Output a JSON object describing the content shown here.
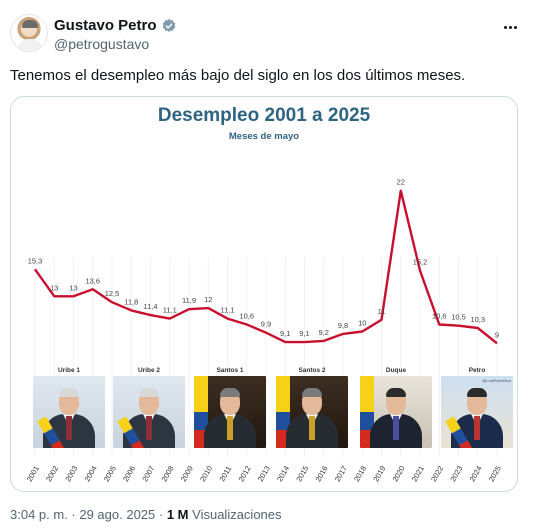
{
  "author": {
    "name": "Gustavo Petro",
    "handle": "@petrogustavo"
  },
  "tweet": {
    "text": "Tenemos el desempleo más bajo del siglo en los dos últimos meses."
  },
  "footer": {
    "timestamp": "3:04 p. m. · 29 ago. 2025",
    "separator": " · ",
    "views_count": "1 M",
    "views_label": "Visualizaciones"
  },
  "colors": {
    "line": "#c8102e",
    "title": "#2f6480",
    "verified": "#829aab"
  },
  "icons": {
    "verified": "verified-badge-icon",
    "more": "more-options-icon"
  },
  "chart_data": {
    "type": "line",
    "title": "Desempleo 2001 a 2025",
    "subtitle": "Meses de mayo",
    "x": [
      "2001",
      "2002",
      "2003",
      "2004",
      "2005",
      "2006",
      "2007",
      "2008",
      "2009",
      "2010",
      "2011",
      "2012",
      "2013",
      "2014",
      "2015",
      "2016",
      "2017",
      "2018",
      "2019",
      "2020",
      "2021",
      "2022",
      "2023",
      "2024",
      "2025"
    ],
    "values": [
      15.3,
      13,
      13,
      13.6,
      12.5,
      11.8,
      11.4,
      11.1,
      11.9,
      12,
      11.1,
      10.6,
      9.9,
      9.1,
      9.1,
      9.2,
      9.8,
      10,
      11,
      22,
      15.2,
      10.6,
      10.5,
      10.3,
      9
    ],
    "labels": [
      "15,3",
      "13",
      "13",
      "13,6",
      "12,5",
      "11,8",
      "11,4",
      "11,1",
      "11,9",
      "12",
      "11,1",
      "10,6",
      "9,9",
      "9,1",
      "9,1",
      "9,2",
      "9,8",
      "10",
      "11",
      "22",
      "15,2",
      "10,6",
      "10,5",
      "10,3",
      "9"
    ],
    "ylim": [
      8,
      23
    ],
    "grid": false,
    "legend": "none"
  },
  "presidents": [
    {
      "label": "Uribe 1",
      "variant": "uribe"
    },
    {
      "label": "Uribe 2",
      "variant": "uribe"
    },
    {
      "label": "Santos 1",
      "variant": "santos"
    },
    {
      "label": "Santos 2",
      "variant": "santos"
    },
    {
      "label": "Duque",
      "variant": "duque"
    },
    {
      "label": "Petro",
      "variant": "petro",
      "credit": "@LuisPetroMod"
    }
  ]
}
